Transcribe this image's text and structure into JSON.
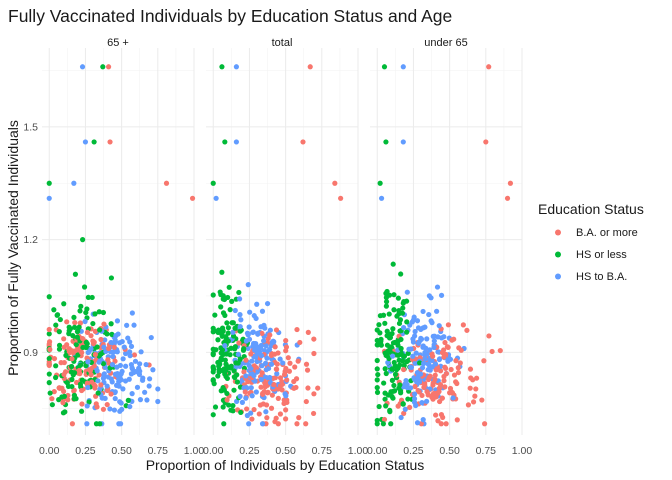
{
  "chart_data": {
    "type": "scatter",
    "title": "Fully Vaccinated Individuals by Education Status and Age",
    "xlabel": "Proportion of Individuals by Education Status",
    "ylabel": "Proportion of Fully Vaccinated Individuals",
    "xlim": [
      -0.05,
      1.0
    ],
    "ylim": [
      0.68,
      1.71
    ],
    "x_ticks": [
      0.0,
      0.25,
      0.5,
      0.75,
      1.0
    ],
    "x_tick_labels": [
      "0.00",
      "0.25",
      "0.50",
      "0.75",
      "1.00"
    ],
    "y_ticks": [
      0.9,
      1.2,
      1.5
    ],
    "y_tick_labels": [
      "0.9",
      "1.2",
      "1.5"
    ],
    "grid": true,
    "facets": [
      "65 +",
      "total",
      "under 65"
    ],
    "legend": {
      "title": "Education Status",
      "position": "right",
      "entries": [
        "B.A. or more",
        "HS or less",
        "HS to B.A."
      ]
    },
    "colors": {
      "B.A. or more": "#F8766D",
      "HS or less": "#00BA38",
      "HS to B.A.": "#619CFF"
    },
    "highlighted_points": [
      {
        "facet": "65 +",
        "series": "HS to B.A.",
        "x": 0.23,
        "y": 1.66
      },
      {
        "facet": "65 +",
        "series": "HS or less",
        "x": 0.37,
        "y": 1.66
      },
      {
        "facet": "65 +",
        "series": "B.A. or more",
        "x": 0.41,
        "y": 1.66
      },
      {
        "facet": "65 +",
        "series": "HS to B.A.",
        "x": 0.25,
        "y": 1.46
      },
      {
        "facet": "65 +",
        "series": "HS or less",
        "x": 0.31,
        "y": 1.46
      },
      {
        "facet": "65 +",
        "series": "B.A. or more",
        "x": 0.42,
        "y": 1.46
      },
      {
        "facet": "65 +",
        "series": "HS or less",
        "x": 0.0,
        "y": 1.35
      },
      {
        "facet": "65 +",
        "series": "HS to B.A.",
        "x": 0.0,
        "y": 1.31
      },
      {
        "facet": "65 +",
        "series": "HS to B.A.",
        "x": 0.17,
        "y": 1.35
      },
      {
        "facet": "65 +",
        "series": "B.A. or more",
        "x": 0.81,
        "y": 1.35
      },
      {
        "facet": "65 +",
        "series": "B.A. or more",
        "x": 0.99,
        "y": 1.31
      },
      {
        "facet": "total",
        "series": "HS or less",
        "x": 0.06,
        "y": 1.66
      },
      {
        "facet": "total",
        "series": "HS to B.A.",
        "x": 0.16,
        "y": 1.66
      },
      {
        "facet": "total",
        "series": "B.A. or more",
        "x": 0.67,
        "y": 1.66
      },
      {
        "facet": "total",
        "series": "HS or less",
        "x": 0.08,
        "y": 1.46
      },
      {
        "facet": "total",
        "series": "HS to B.A.",
        "x": 0.16,
        "y": 1.46
      },
      {
        "facet": "total",
        "series": "B.A. or more",
        "x": 0.62,
        "y": 1.46
      },
      {
        "facet": "total",
        "series": "HS or less",
        "x": 0.0,
        "y": 1.35
      },
      {
        "facet": "total",
        "series": "HS to B.A.",
        "x": 0.02,
        "y": 1.31
      },
      {
        "facet": "total",
        "series": "B.A. or more",
        "x": 0.84,
        "y": 1.35
      },
      {
        "facet": "total",
        "series": "B.A. or more",
        "x": 0.88,
        "y": 1.31
      },
      {
        "facet": "under 65",
        "series": "HS or less",
        "x": 0.05,
        "y": 1.66
      },
      {
        "facet": "under 65",
        "series": "HS to B.A.",
        "x": 0.18,
        "y": 1.66
      },
      {
        "facet": "under 65",
        "series": "B.A. or more",
        "x": 0.77,
        "y": 1.66
      },
      {
        "facet": "under 65",
        "series": "HS or less",
        "x": 0.06,
        "y": 1.46
      },
      {
        "facet": "under 65",
        "series": "HS to B.A.",
        "x": 0.18,
        "y": 1.46
      },
      {
        "facet": "under 65",
        "series": "B.A. or more",
        "x": 0.75,
        "y": 1.46
      },
      {
        "facet": "under 65",
        "series": "HS or less",
        "x": 0.02,
        "y": 1.35
      },
      {
        "facet": "under 65",
        "series": "HS to B.A.",
        "x": 0.03,
        "y": 1.31
      },
      {
        "facet": "under 65",
        "series": "B.A. or more",
        "x": 0.92,
        "y": 1.35
      },
      {
        "facet": "under 65",
        "series": "B.A. or more",
        "x": 0.9,
        "y": 1.31
      }
    ],
    "clusters": [
      {
        "facet": "65 +",
        "series": "B.A. or more",
        "n": 140,
        "x_center": 0.22,
        "x_spread": 0.13,
        "y_center": 0.87,
        "y_spread": 0.06,
        "x_range": [
          0.0,
          0.8
        ],
        "y_range": [
          0.71,
          1.2
        ]
      },
      {
        "facet": "65 +",
        "series": "HS or less",
        "n": 130,
        "x_center": 0.2,
        "x_spread": 0.13,
        "y_center": 0.9,
        "y_spread": 0.09,
        "x_range": [
          0.0,
          0.55
        ],
        "y_range": [
          0.71,
          1.2
        ]
      },
      {
        "facet": "65 +",
        "series": "HS to B.A.",
        "n": 150,
        "x_center": 0.45,
        "x_spread": 0.12,
        "y_center": 0.85,
        "y_spread": 0.06,
        "x_range": [
          0.05,
          0.75
        ],
        "y_range": [
          0.71,
          1.17
        ]
      },
      {
        "facet": "total",
        "series": "B.A. or more",
        "n": 145,
        "x_center": 0.38,
        "x_spread": 0.14,
        "y_center": 0.83,
        "y_spread": 0.06,
        "x_range": [
          0.0,
          0.85
        ],
        "y_range": [
          0.71,
          1.2
        ]
      },
      {
        "facet": "total",
        "series": "HS or less",
        "n": 135,
        "x_center": 0.1,
        "x_spread": 0.07,
        "y_center": 0.9,
        "y_spread": 0.09,
        "x_range": [
          0.0,
          0.4
        ],
        "y_range": [
          0.71,
          1.2
        ]
      },
      {
        "facet": "total",
        "series": "HS to B.A.",
        "n": 145,
        "x_center": 0.31,
        "x_spread": 0.1,
        "y_center": 0.88,
        "y_spread": 0.07,
        "x_range": [
          0.05,
          0.6
        ],
        "y_range": [
          0.71,
          1.2
        ]
      },
      {
        "facet": "under 65",
        "series": "B.A. or more",
        "n": 145,
        "x_center": 0.4,
        "x_spread": 0.15,
        "y_center": 0.83,
        "y_spread": 0.06,
        "x_range": [
          0.05,
          0.85
        ],
        "y_range": [
          0.71,
          1.2
        ]
      },
      {
        "facet": "under 65",
        "series": "HS or less",
        "n": 135,
        "x_center": 0.1,
        "x_spread": 0.07,
        "y_center": 0.9,
        "y_spread": 0.09,
        "x_range": [
          0.0,
          0.4
        ],
        "y_range": [
          0.71,
          1.2
        ]
      },
      {
        "facet": "under 65",
        "series": "HS to B.A.",
        "n": 145,
        "x_center": 0.33,
        "x_spread": 0.1,
        "y_center": 0.87,
        "y_spread": 0.07,
        "x_range": [
          0.05,
          0.6
        ],
        "y_range": [
          0.71,
          1.2
        ]
      }
    ]
  }
}
